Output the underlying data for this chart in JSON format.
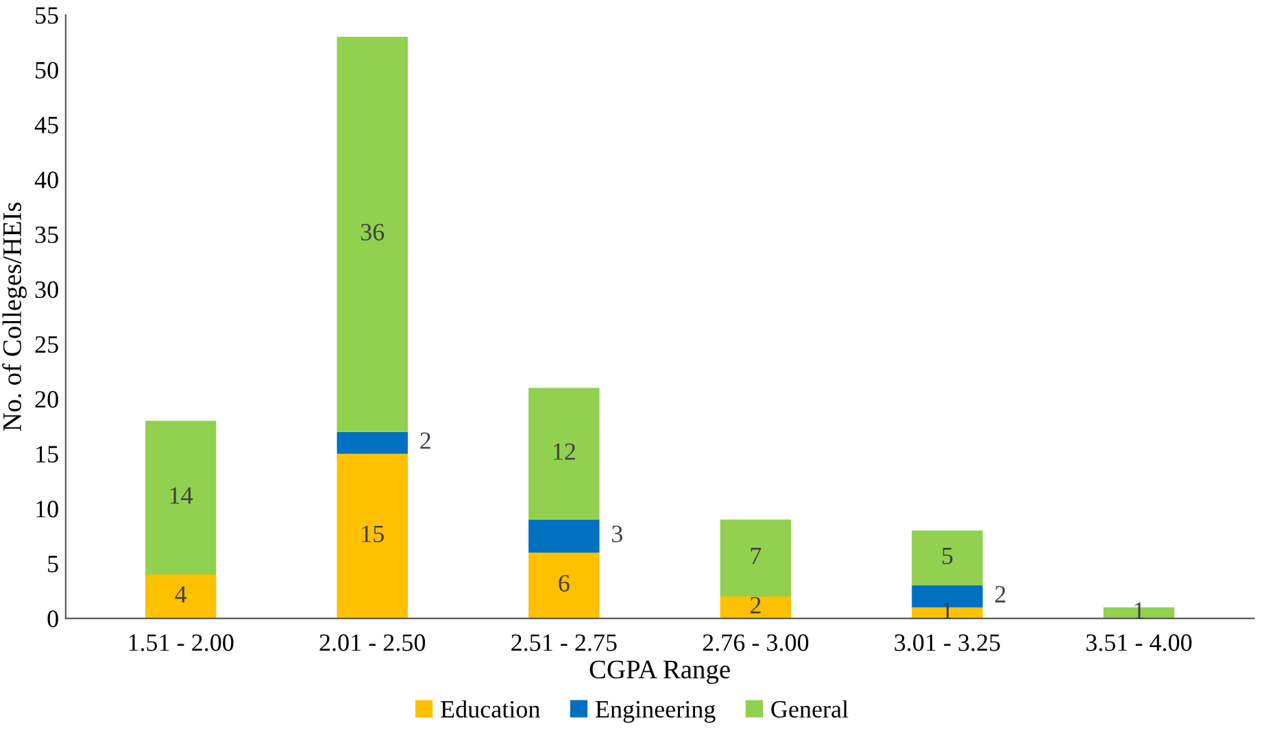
{
  "chart_data": {
    "type": "bar",
    "stacked": true,
    "xlabel": "CGPA Range",
    "ylabel": "No. of Colleges/HEIs",
    "categories": [
      "1.51 - 2.00",
      "2.01 - 2.50",
      "2.51 - 2.75",
      "2.76 - 3.00",
      "3.01 - 3.25",
      "3.51 - 4.00"
    ],
    "series": [
      {
        "name": "Education",
        "color": "#ffc000",
        "values": [
          4,
          15,
          6,
          2,
          1,
          0
        ],
        "value_labels": [
          "4",
          "15",
          "6",
          "2",
          "1",
          null
        ]
      },
      {
        "name": "Engineering",
        "color": "#0070c0",
        "values": [
          0,
          2,
          3,
          0,
          2,
          0
        ],
        "value_labels": [
          null,
          "2",
          "3",
          null,
          "2",
          null
        ]
      },
      {
        "name": "General",
        "color": "#92d050",
        "values": [
          14,
          36,
          12,
          7,
          5,
          1
        ],
        "value_labels": [
          "14",
          "36",
          "12",
          "7",
          "5",
          "1"
        ]
      }
    ],
    "ylim": [
      0,
      55
    ],
    "yticks": [
      0,
      5,
      10,
      15,
      20,
      25,
      30,
      35,
      40,
      45,
      50,
      55
    ],
    "grid": false,
    "legend": "bottom"
  }
}
